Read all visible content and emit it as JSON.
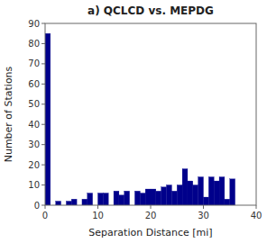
{
  "chart_data": {
    "type": "histogram",
    "title": "a) QCLCD vs. MEPDG",
    "xlabel": "Separation Distance [mi]",
    "ylabel": "Number of Stations",
    "bins": [
      0,
      1,
      2,
      3,
      4,
      5,
      6,
      7,
      8,
      9,
      10,
      11,
      12,
      13,
      14,
      15,
      16,
      17,
      18,
      19,
      20,
      21,
      22,
      23,
      24,
      25,
      26,
      27,
      28,
      29,
      30,
      31,
      32,
      33,
      34,
      35,
      36,
      37,
      38,
      39,
      40
    ],
    "values": [
      85,
      0,
      2,
      0,
      2,
      3,
      0,
      3,
      6,
      0,
      6,
      6,
      0,
      7,
      5,
      7,
      0,
      7,
      6,
      8,
      8,
      7,
      9,
      10,
      7,
      10,
      18,
      12,
      10,
      14,
      4,
      14,
      12,
      14,
      3,
      13,
      0,
      0,
      0,
      0
    ],
    "color": "#00008B",
    "xlim": [
      0,
      40
    ],
    "ylim": [
      0,
      90
    ],
    "xticks": [
      0,
      10,
      20,
      30,
      40
    ],
    "yticks": [
      0,
      10,
      20,
      30,
      40,
      50,
      60,
      70,
      80,
      90
    ]
  }
}
